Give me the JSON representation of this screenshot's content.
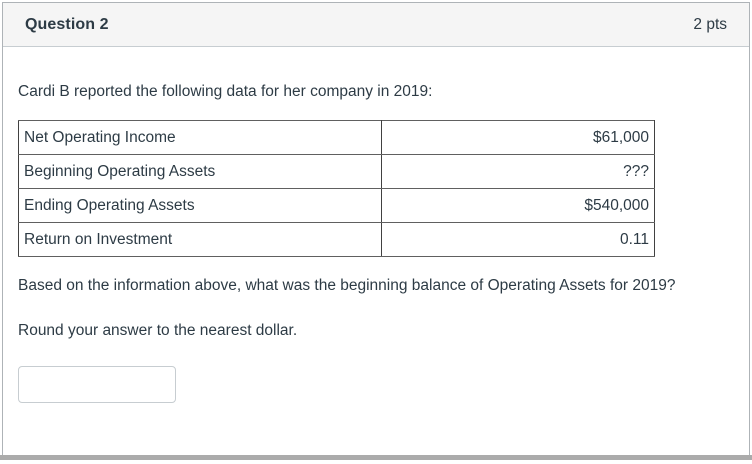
{
  "header": {
    "title": "Question 2",
    "points": "2 pts"
  },
  "body": {
    "intro": "Cardi B reported the following data for her company in 2019:",
    "table": {
      "rows": [
        {
          "label": "Net Operating Income",
          "value": "$61,000"
        },
        {
          "label": "Beginning Operating Assets",
          "value": "???"
        },
        {
          "label": "Ending Operating Assets",
          "value": "$540,000"
        },
        {
          "label": "Return on Investment",
          "value": "0.11"
        }
      ]
    },
    "question": "Based on the information above, what was the beginning balance of Operating Assets for 2019?",
    "instruction": "Round your answer to the nearest dollar.",
    "answer_input": {
      "value": "",
      "placeholder": ""
    }
  },
  "colors": {
    "ink": "#2D3B45",
    "header_bg": "#F5F5F5",
    "card_border": "#AEB3B7",
    "header_divider": "#C7CDD1",
    "table_border": "#414141",
    "input_border": "#C7CDD1",
    "bottom_strip": "#ABABAB"
  }
}
